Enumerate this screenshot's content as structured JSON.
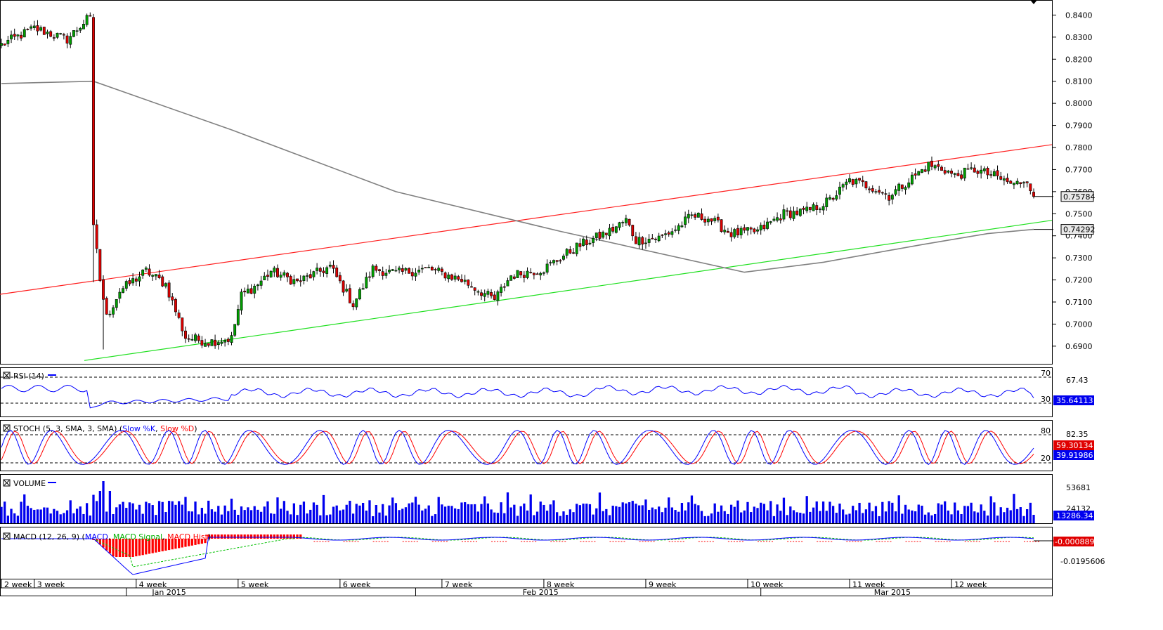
{
  "chart_data": {
    "type": "candlestick",
    "timeframe_note": "",
    "price_panel": {
      "ylim": [
        0.682,
        0.8465
      ],
      "ticks": [
        "0.8400",
        "0.8300",
        "0.8200",
        "0.8100",
        "0.8000",
        "0.7900",
        "0.7800",
        "0.7700",
        "0.7600",
        "0.7500",
        "0.7400",
        "0.7300",
        "0.7200",
        "0.7100",
        "0.7000",
        "0.6900"
      ],
      "last_price_label": "0.75784",
      "ma_label": "0.74292",
      "colors": {
        "up": "#00a000",
        "down": "#e00000",
        "ma": "#808080",
        "upper_channel": "#ff2020",
        "lower_channel": "#20e020"
      },
      "keypoints": [
        {
          "t": 0,
          "close": 0.8265
        },
        {
          "t": 10,
          "close": 0.834
        },
        {
          "t": 20,
          "close": 0.829
        },
        {
          "t": 27,
          "close": 0.8395
        },
        {
          "t": 28,
          "close": 0.745
        },
        {
          "t": 30,
          "close": 0.72
        },
        {
          "t": 32,
          "close": 0.703
        },
        {
          "t": 36,
          "close": 0.715
        },
        {
          "t": 44,
          "close": 0.724
        },
        {
          "t": 50,
          "close": 0.718
        },
        {
          "t": 56,
          "close": 0.694
        },
        {
          "t": 63,
          "close": 0.692
        },
        {
          "t": 70,
          "close": 0.6935
        },
        {
          "t": 73,
          "close": 0.713
        },
        {
          "t": 78,
          "close": 0.718
        },
        {
          "t": 82,
          "close": 0.724
        },
        {
          "t": 90,
          "close": 0.719
        },
        {
          "t": 100,
          "close": 0.726
        },
        {
          "t": 107,
          "close": 0.709
        },
        {
          "t": 113,
          "close": 0.725
        },
        {
          "t": 120,
          "close": 0.723
        },
        {
          "t": 130,
          "close": 0.725
        },
        {
          "t": 140,
          "close": 0.72
        },
        {
          "t": 150,
          "close": 0.711
        },
        {
          "t": 155,
          "close": 0.722
        },
        {
          "t": 165,
          "close": 0.725
        },
        {
          "t": 175,
          "close": 0.735
        },
        {
          "t": 185,
          "close": 0.742
        },
        {
          "t": 190,
          "close": 0.747
        },
        {
          "t": 193,
          "close": 0.738
        },
        {
          "t": 200,
          "close": 0.739
        },
        {
          "t": 205,
          "close": 0.743
        },
        {
          "t": 210,
          "close": 0.749
        },
        {
          "t": 215,
          "close": 0.748
        },
        {
          "t": 222,
          "close": 0.741
        },
        {
          "t": 230,
          "close": 0.742
        },
        {
          "t": 238,
          "close": 0.75
        },
        {
          "t": 245,
          "close": 0.751
        },
        {
          "t": 252,
          "close": 0.756
        },
        {
          "t": 258,
          "close": 0.765
        },
        {
          "t": 265,
          "close": 0.762
        },
        {
          "t": 270,
          "close": 0.758
        },
        {
          "t": 275,
          "close": 0.764
        },
        {
          "t": 282,
          "close": 0.772
        },
        {
          "t": 287,
          "close": 0.77
        },
        {
          "t": 290,
          "close": 0.767
        },
        {
          "t": 296,
          "close": 0.77
        },
        {
          "t": 302,
          "close": 0.767
        },
        {
          "t": 308,
          "close": 0.763
        },
        {
          "t": 312,
          "close": 0.766
        },
        {
          "t": 314,
          "close": 0.7578
        }
      ]
    },
    "x_axis": {
      "week_labels": [
        {
          "label": "2 week",
          "t": 0
        },
        {
          "label": "3 week",
          "t": 10
        },
        {
          "label": "4 week",
          "t": 41
        },
        {
          "label": "5 week",
          "t": 72
        },
        {
          "label": "6 week",
          "t": 103
        },
        {
          "label": "7 week",
          "t": 134
        },
        {
          "label": "8 week",
          "t": 165
        },
        {
          "label": "9 week",
          "t": 196
        },
        {
          "label": "10 week",
          "t": 227
        },
        {
          "label": "11 week",
          "t": 258
        },
        {
          "label": "12 week",
          "t": 289
        }
      ],
      "month_labels": [
        {
          "label": "Jan 2015",
          "t": 51
        },
        {
          "label": "Feb 2015",
          "t": 164
        },
        {
          "label": "Mar 2015",
          "t": 271
        }
      ]
    },
    "rsi": {
      "label": "RSI (14)",
      "levels": {
        "high": "70",
        "low": "30"
      },
      "tick_label": "67.43",
      "value_label": "35.64113"
    },
    "stoch": {
      "label": "STOCH (5, 3, SMA, 3, SMA)",
      "slow_k_label": "Slow %K",
      "slow_d_label": "Slow %D",
      "levels": {
        "high": "80",
        "low": "20"
      },
      "tick_label": "82.35",
      "value_k": "59.30134",
      "value_d": "39.91986"
    },
    "volume": {
      "label": "VOLUME",
      "ticks": [
        "53681",
        "24132"
      ],
      "value_label": "13286.34"
    },
    "macd": {
      "label": "MACD (12, 26, 9)",
      "macd_label": "MACD",
      "signal_label": "MACD Signal",
      "hist_label": "MACD Hist",
      "tick_label": "-0.0195606",
      "value_label": "-0.0008893"
    }
  }
}
